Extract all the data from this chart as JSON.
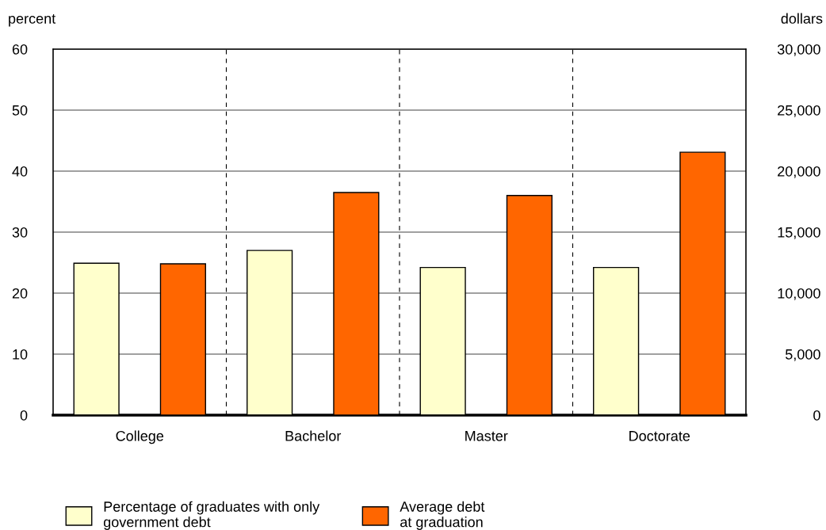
{
  "chart_data": {
    "type": "bar",
    "categories": [
      "College",
      "Bachelor",
      "Master",
      "Doctorate"
    ],
    "ylabel": "percent",
    "y2label": "dollars",
    "series": [
      {
        "name": "Percentage of graduates with only\ngovernment debt",
        "color": "#ffffcc",
        "values": [
          24.9,
          27.0,
          24.2,
          24.2
        ]
      },
      {
        "name": "Average debt\nat graduation",
        "color": "#ff6600",
        "axis": "y2",
        "values": [
          12400,
          18250,
          18000,
          21550
        ]
      }
    ],
    "ylim": [
      0,
      60
    ],
    "yticks": [
      0,
      10,
      20,
      30,
      40,
      50,
      60
    ],
    "y2lim": [
      0,
      30000
    ],
    "y2ticks": [
      {
        "value": 0,
        "label": "0"
      },
      {
        "value": 5000,
        "label": "5,000"
      },
      {
        "value": 10000,
        "label": "10,000"
      },
      {
        "value": 15000,
        "label": "15,000"
      },
      {
        "value": 20000,
        "label": "20,000"
      },
      {
        "value": 25000,
        "label": "25,000"
      },
      {
        "value": 30000,
        "label": "30,000"
      }
    ],
    "grid": true,
    "legend": "bottom"
  }
}
